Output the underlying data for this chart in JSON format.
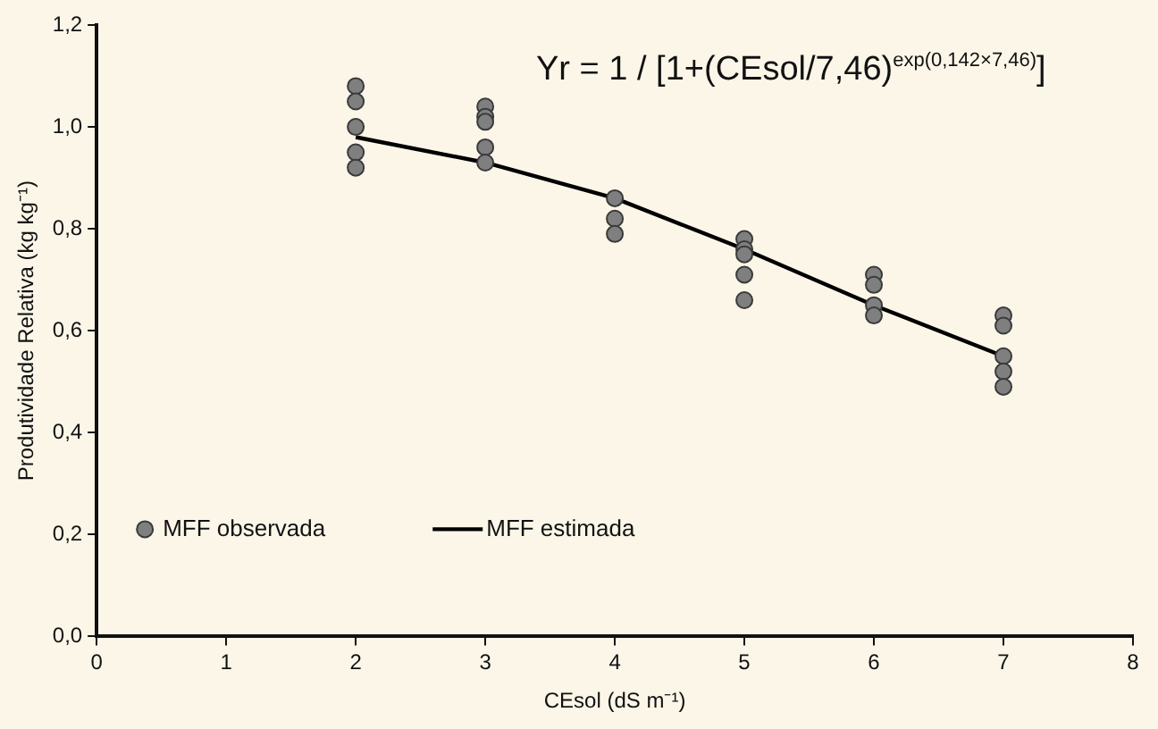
{
  "chart_data": {
    "type": "scatter",
    "xlabel": "CEsol (dS m⁻¹)",
    "ylabel": "Produtividade Relativa (kg kg⁻¹)",
    "annotations": [
      "Yr = 1 / [1+(CEsol/7,46)$^{exp(0,142×7,46)}$]"
    ],
    "series": [
      {
        "name": "MFF observada",
        "type": "scatter",
        "marker": "circle",
        "color": "#7f7f7f",
        "x": [
          2,
          2,
          2,
          2,
          2,
          3,
          3,
          3,
          3,
          3,
          4,
          4,
          4,
          5,
          5,
          5,
          5,
          5,
          6,
          6,
          6,
          6,
          7,
          7,
          7,
          7,
          7
        ],
        "values": [
          1.08,
          1.05,
          1.0,
          0.95,
          0.92,
          1.04,
          1.02,
          1.01,
          0.96,
          0.93,
          0.86,
          0.82,
          0.79,
          0.78,
          0.76,
          0.75,
          0.71,
          0.66,
          0.71,
          0.69,
          0.65,
          0.63,
          0.63,
          0.61,
          0.55,
          0.52,
          0.49
        ]
      },
      {
        "name": "MFF estimada",
        "type": "line",
        "marker": "none",
        "color": "#000000",
        "x": [
          2,
          3,
          4,
          5,
          6,
          7
        ],
        "values": [
          0.98,
          0.93,
          0.86,
          0.76,
          0.65,
          0.55
        ]
      }
    ],
    "xlim": [
      0,
      8
    ],
    "xticks": [
      0,
      1,
      2,
      3,
      4,
      5,
      6,
      7,
      8
    ],
    "ylim": [
      0,
      1.2
    ],
    "yticks": [
      {
        "value": 0,
        "label": "0,0"
      },
      {
        "value": 0.2,
        "label": "0,2"
      },
      {
        "value": 0.4,
        "label": "0,4"
      },
      {
        "value": 0.6,
        "label": "0,6"
      },
      {
        "value": 0.8,
        "label": "0,8"
      },
      {
        "value": 1.0,
        "label": "1,0"
      },
      {
        "value": 1.2,
        "label": "1,2"
      }
    ],
    "grid": false,
    "legend": "bottom left",
    "line_style": "solid"
  }
}
